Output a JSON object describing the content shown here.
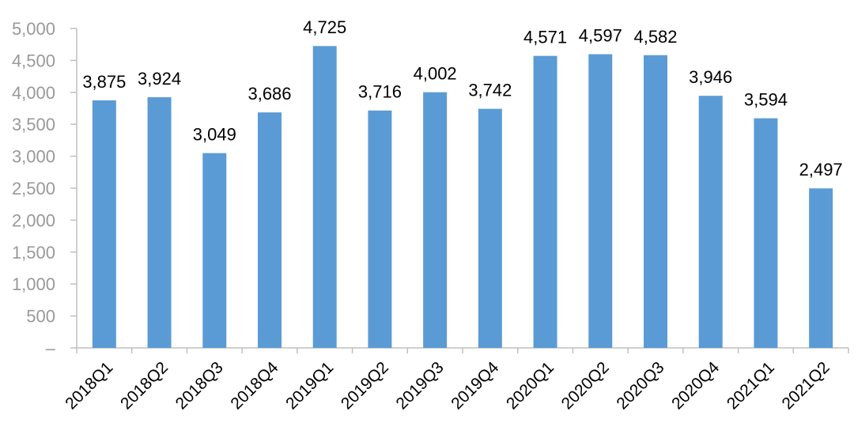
{
  "chart_data": {
    "type": "bar",
    "title": "",
    "xlabel": "",
    "ylabel": "",
    "categories": [
      "2018Q1",
      "2018Q2",
      "2018Q3",
      "2018Q4",
      "2019Q1",
      "2019Q2",
      "2019Q3",
      "2019Q4",
      "2020Q1",
      "2020Q2",
      "2020Q3",
      "2020Q4",
      "2021Q1",
      "2021Q2"
    ],
    "values": [
      3875,
      3924,
      3049,
      3686,
      4725,
      3716,
      4002,
      3742,
      4571,
      4597,
      4582,
      3946,
      3594,
      2497
    ],
    "data_labels": [
      "3,875",
      "3,924",
      "3,049",
      "3,686",
      "4,725",
      "3,716",
      "4,002",
      "3,742",
      "4,571",
      "4,597",
      "4,582",
      "3,946",
      "3,594",
      "2,497"
    ],
    "ylim": [
      0,
      5000
    ],
    "ytick_step": 500,
    "ytick_labels": [
      "–",
      "500",
      "1,000",
      "1,500",
      "2,000",
      "2,500",
      "3,000",
      "3,500",
      "4,000",
      "4,500",
      "5,000"
    ],
    "xtick_rotation_deg": -45,
    "grid": false,
    "legend": null,
    "colors": {
      "bar": "#5B9BD5",
      "axis_line": "#BFBFBF",
      "ytick_text": "#999999",
      "xtick_text": "#000000",
      "data_label_text": "#000000",
      "background": "#FFFFFF"
    }
  }
}
